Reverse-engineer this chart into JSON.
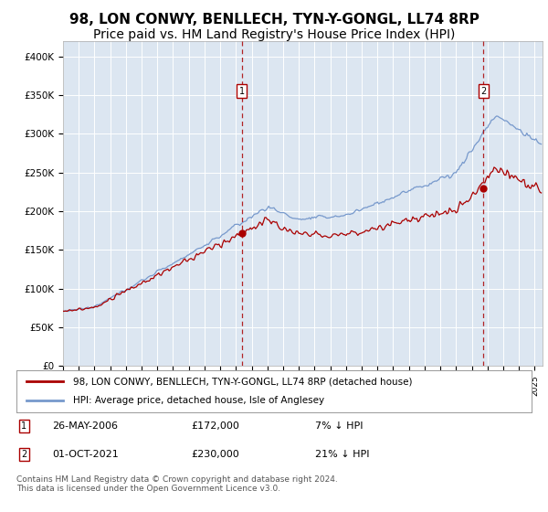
{
  "title": "98, LON CONWY, BENLLECH, TYN-Y-GONGL, LL74 8RP",
  "subtitle": "Price paid vs. HM Land Registry's House Price Index (HPI)",
  "ylabel_ticks": [
    "£0",
    "£50K",
    "£100K",
    "£150K",
    "£200K",
    "£250K",
    "£300K",
    "£350K",
    "£400K"
  ],
  "ytick_values": [
    0,
    50000,
    100000,
    150000,
    200000,
    250000,
    300000,
    350000,
    400000
  ],
  "ylim": [
    0,
    420000
  ],
  "xlim_start": 1995.0,
  "xlim_end": 2025.5,
  "background_color": "#dce6f1",
  "outer_bg_color": "#ffffff",
  "red_line_color": "#aa0000",
  "blue_line_color": "#7799cc",
  "sale1_x": 2006.38,
  "sale1_y": 172000,
  "sale2_x": 2021.75,
  "sale2_y": 230000,
  "legend_red_label": "98, LON CONWY, BENLLECH, TYN-Y-GONGL, LL74 8RP (detached house)",
  "legend_blue_label": "HPI: Average price, detached house, Isle of Anglesey",
  "annotation1_date": "26-MAY-2006",
  "annotation1_price": "£172,000",
  "annotation1_hpi": "7% ↓ HPI",
  "annotation2_date": "01-OCT-2021",
  "annotation2_price": "£230,000",
  "annotation2_hpi": "21% ↓ HPI",
  "footer": "Contains HM Land Registry data © Crown copyright and database right 2024.\nThis data is licensed under the Open Government Licence v3.0.",
  "title_fontsize": 11,
  "subtitle_fontsize": 10
}
